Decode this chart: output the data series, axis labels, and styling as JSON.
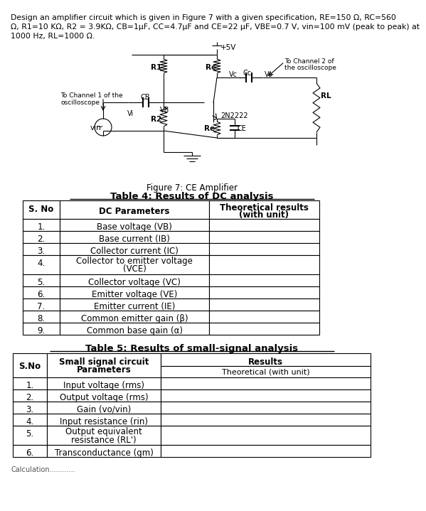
{
  "title_lines": [
    "Design an amplifier circuit which is given in Figure 7 with a given specification, RE=150 Ω, RC=560",
    "Ω, R1=10 KΩ, R2 = 3.9KΩ, CB=1μF, CC=4.7μF and CE=22 μF, VBE=0.7 V, vin=100 mV (peak to peak) at",
    "1000 Hz, RL=1000 Ω."
  ],
  "fig_caption": "Figure 7: CE Amplifier",
  "table4_title": "Table 4: Results of DC analysis",
  "table4_rows": [
    [
      "1.",
      "Base voltage (VB)",
      ""
    ],
    [
      "2.",
      "Base current (IB)",
      ""
    ],
    [
      "3.",
      "Collector current (IC)",
      ""
    ],
    [
      "4.",
      "Collector to emitter voltage\n(VCE)",
      ""
    ],
    [
      "5.",
      "Collector voltage (VC)",
      ""
    ],
    [
      "6.",
      "Emitter voltage (VE)",
      ""
    ],
    [
      "7.",
      "Emitter current (IE)",
      ""
    ],
    [
      "8.",
      "Common emitter gain (β)",
      ""
    ],
    [
      "9.",
      "Common base gain (α)",
      ""
    ]
  ],
  "table5_title": "Table 5: Results of small-signal analysis",
  "table5_rows": [
    [
      "1.",
      "Input voltage (rms)",
      ""
    ],
    [
      "2.",
      "Output voltage (rms)",
      ""
    ],
    [
      "3.",
      "Gain (vo/vin)",
      ""
    ],
    [
      "4.",
      "Input resistance (rin)",
      ""
    ],
    [
      "5.",
      "Output equivalent\nresistance (RL')",
      ""
    ],
    [
      "6.",
      "Transconductance (gm)",
      ""
    ]
  ],
  "footer_text": "Calculation............",
  "bg_color": "#ffffff"
}
